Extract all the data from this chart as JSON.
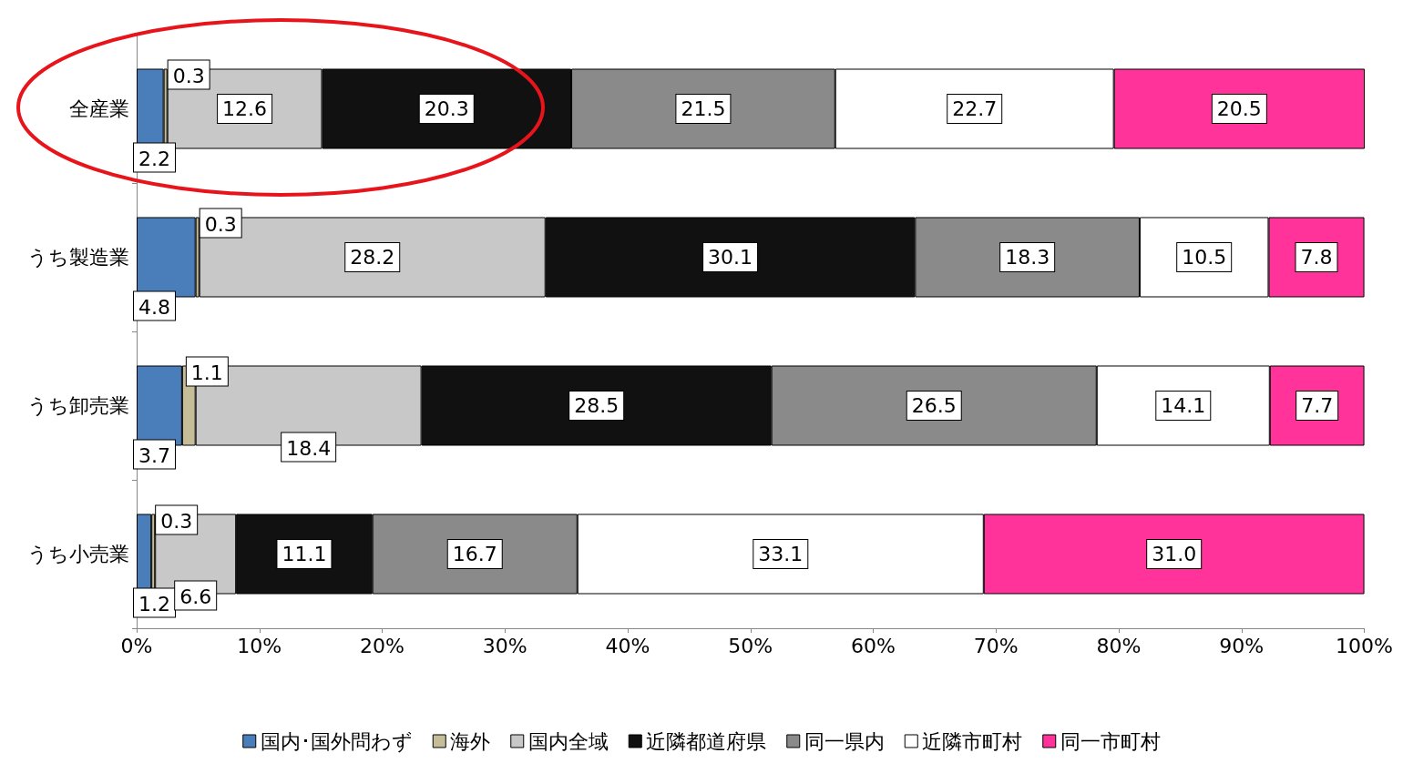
{
  "chart_data": {
    "type": "bar",
    "orientation": "horizontal",
    "stacked": true,
    "data_labels": true,
    "legend": "bottom",
    "grid": false,
    "categories": [
      "全産業",
      "うち製造業",
      "うち卸売業",
      "うち小売業"
    ],
    "xlim": [
      0,
      100
    ],
    "xticks": [
      {
        "value": 0,
        "label": "0%"
      },
      {
        "value": 10,
        "label": "10%"
      },
      {
        "value": 20,
        "label": "20%"
      },
      {
        "value": 30,
        "label": "30%"
      },
      {
        "value": 40,
        "label": "40%"
      },
      {
        "value": 50,
        "label": "50%"
      },
      {
        "value": 60,
        "label": "60%"
      },
      {
        "value": 70,
        "label": "70%"
      },
      {
        "value": 80,
        "label": "80%"
      },
      {
        "value": 90,
        "label": "90%"
      },
      {
        "value": 100,
        "label": "100%"
      }
    ],
    "series": [
      {
        "name": "国内･国外問わず",
        "color": "#4a7ebb",
        "values": [
          2.2,
          4.8,
          3.7,
          1.2
        ]
      },
      {
        "name": "海外",
        "color": "#c4bd97",
        "values": [
          0.3,
          0.3,
          1.1,
          0.3
        ]
      },
      {
        "name": "国内全域",
        "color": "#c8c8c8",
        "values": [
          12.6,
          28.2,
          18.4,
          6.6
        ]
      },
      {
        "name": "近隣都道府県",
        "color": "#111111",
        "values": [
          20.3,
          30.1,
          28.5,
          11.1
        ]
      },
      {
        "name": "同一県内",
        "color": "#8a8a8a",
        "values": [
          21.5,
          18.3,
          26.5,
          16.7
        ]
      },
      {
        "name": "近隣市町村",
        "color": "#ffffff",
        "values": [
          22.7,
          10.5,
          14.1,
          33.1
        ]
      },
      {
        "name": "同一市町村",
        "color": "#ff3399",
        "values": [
          20.5,
          7.8,
          7.7,
          31.0
        ],
        "value_labels": [
          "20.5",
          "7.8",
          "7.7",
          "31.0"
        ]
      }
    ]
  }
}
